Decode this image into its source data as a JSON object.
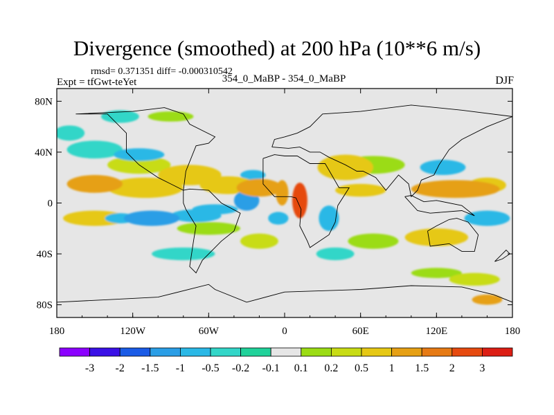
{
  "chart_data": {
    "type": "heatmap",
    "title": "Divergence (smoothed) at 200 hPa (10**6 m/s)",
    "stats": "rmsd= 0.371351 diff= -0.000310542",
    "experiment": "Expt = tfGwt-teYet",
    "case": "354_0_MaBP - 354_0_MaBP",
    "season": "DJF",
    "x_ticks": [
      "180",
      "120W",
      "60W",
      "0",
      "60E",
      "120E",
      "180"
    ],
    "x_range": [
      -180,
      180
    ],
    "y_ticks": [
      "80N",
      "40N",
      "0",
      "40S",
      "80S"
    ],
    "y_range": [
      -90,
      90
    ],
    "colorbar": {
      "colors": [
        "#8b00ff",
        "#3a10e6",
        "#1a5be6",
        "#2a9ee6",
        "#2ab8e6",
        "#32d6c8",
        "#20d29a",
        "#e6e6e6",
        "#9bdc14",
        "#c8dc14",
        "#e6c814",
        "#e6a014",
        "#e67a14",
        "#e64a0f",
        "#dc1e14"
      ],
      "labels": [
        "-3",
        "-2",
        "-1.5",
        "-1",
        "-0.5",
        "-0.2",
        "-0.1",
        "0.1",
        "0.2",
        "0.5",
        "1",
        "1.5",
        "2",
        "3"
      ]
    },
    "features": [
      {
        "lon": -150,
        "lat": 15,
        "rx": 22,
        "ry": 7,
        "value": 1.1
      },
      {
        "lon": -110,
        "lat": 12,
        "rx": 30,
        "ry": 8,
        "value": 0.7
      },
      {
        "lon": -75,
        "lat": 22,
        "rx": 25,
        "ry": 8,
        "value": 0.6
      },
      {
        "lon": -45,
        "lat": 14,
        "rx": 22,
        "ry": 7,
        "value": 0.8
      },
      {
        "lon": -20,
        "lat": 12,
        "rx": 18,
        "ry": 7,
        "value": 1.3
      },
      {
        "lon": 12,
        "lat": 2,
        "rx": 6,
        "ry": 14,
        "value": 2.6
      },
      {
        "lon": -2,
        "lat": 8,
        "rx": 5,
        "ry": 10,
        "value": 1.2
      },
      {
        "lon": 48,
        "lat": 28,
        "rx": 22,
        "ry": 10,
        "value": 0.9
      },
      {
        "lon": 60,
        "lat": 10,
        "rx": 20,
        "ry": 5,
        "value": 0.6
      },
      {
        "lon": 135,
        "lat": 11,
        "rx": 35,
        "ry": 7,
        "value": 1.3
      },
      {
        "lon": 160,
        "lat": 14,
        "rx": 15,
        "ry": 6,
        "value": 0.8
      },
      {
        "lon": -150,
        "lat": -12,
        "rx": 25,
        "ry": 6,
        "value": 0.7
      },
      {
        "lon": 120,
        "lat": -27,
        "rx": 25,
        "ry": 7,
        "value": 0.6
      },
      {
        "lon": -115,
        "lat": 30,
        "rx": 25,
        "ry": 7,
        "value": 0.3
      },
      {
        "lon": -20,
        "lat": -30,
        "rx": 15,
        "ry": 6,
        "value": 0.3
      },
      {
        "lon": 150,
        "lat": -60,
        "rx": 20,
        "ry": 5,
        "value": 0.5
      },
      {
        "lon": 160,
        "lat": -76,
        "rx": 12,
        "ry": 4,
        "value": 1.4
      },
      {
        "lon": -170,
        "lat": 55,
        "rx": 12,
        "ry": 6,
        "value": -0.3
      },
      {
        "lon": -115,
        "lat": 38,
        "rx": 20,
        "ry": 5,
        "value": -0.5
      },
      {
        "lon": -70,
        "lat": -10,
        "rx": 20,
        "ry": 5,
        "value": -0.9
      },
      {
        "lon": -105,
        "lat": -12,
        "rx": 22,
        "ry": 6,
        "value": -1.2
      },
      {
        "lon": -130,
        "lat": -12,
        "rx": 12,
        "ry": 4,
        "value": -0.8
      },
      {
        "lon": -55,
        "lat": -5,
        "rx": 18,
        "ry": 4,
        "value": -0.6
      },
      {
        "lon": -30,
        "lat": 2,
        "rx": 10,
        "ry": 8,
        "value": -1.1
      },
      {
        "lon": -5,
        "lat": -12,
        "rx": 8,
        "ry": 5,
        "value": -0.8
      },
      {
        "lon": -25,
        "lat": 22,
        "rx": 10,
        "ry": 4,
        "value": -0.6
      },
      {
        "lon": 35,
        "lat": -12,
        "rx": 8,
        "ry": 10,
        "value": -0.7
      },
      {
        "lon": 125,
        "lat": 28,
        "rx": 18,
        "ry": 6,
        "value": -0.6
      },
      {
        "lon": 160,
        "lat": -12,
        "rx": 18,
        "ry": 6,
        "value": -0.5
      },
      {
        "lon": -150,
        "lat": 42,
        "rx": 22,
        "ry": 7,
        "value": -0.3
      },
      {
        "lon": -130,
        "lat": 68,
        "rx": 15,
        "ry": 5,
        "value": -0.3
      },
      {
        "lon": -80,
        "lat": -40,
        "rx": 25,
        "ry": 5,
        "value": -0.3
      },
      {
        "lon": 40,
        "lat": -40,
        "rx": 15,
        "ry": 5,
        "value": -0.3
      },
      {
        "lon": 70,
        "lat": 30,
        "rx": 25,
        "ry": 7,
        "value": 0.2
      },
      {
        "lon": -60,
        "lat": -20,
        "rx": 25,
        "ry": 5,
        "value": 0.2
      },
      {
        "lon": 70,
        "lat": -30,
        "rx": 20,
        "ry": 6,
        "value": 0.2
      },
      {
        "lon": 120,
        "lat": -55,
        "rx": 20,
        "ry": 4,
        "value": 0.2
      },
      {
        "lon": -90,
        "lat": 68,
        "rx": 18,
        "ry": 4,
        "value": 0.15
      }
    ],
    "coastlines": [
      [
        [
          -165,
          70
        ],
        [
          -140,
          70
        ],
        [
          -125,
          55
        ],
        [
          -125,
          40
        ],
        [
          -115,
          30
        ],
        [
          -100,
          20
        ],
        [
          -90,
          15
        ],
        [
          -80,
          10
        ],
        [
          -78,
          25
        ],
        [
          -70,
          45
        ],
        [
          -60,
          47
        ],
        [
          -55,
          52
        ],
        [
          -75,
          62
        ],
        [
          -80,
          70
        ],
        [
          -95,
          75
        ],
        [
          -120,
          72
        ],
        [
          -165,
          70
        ]
      ],
      [
        [
          -80,
          10
        ],
        [
          -75,
          11
        ],
        [
          -60,
          10
        ],
        [
          -50,
          0
        ],
        [
          -35,
          -8
        ],
        [
          -40,
          -22
        ],
        [
          -50,
          -30
        ],
        [
          -58,
          -38
        ],
        [
          -65,
          -45
        ],
        [
          -70,
          -55
        ],
        [
          -75,
          -50
        ],
        [
          -72,
          -30
        ],
        [
          -70,
          -18
        ],
        [
          -78,
          -5
        ],
        [
          -80,
          0
        ],
        [
          -80,
          10
        ]
      ],
      [
        [
          -17,
          35
        ],
        [
          -8,
          38
        ],
        [
          0,
          37
        ],
        [
          10,
          37
        ],
        [
          20,
          31
        ],
        [
          32,
          31
        ],
        [
          43,
          12
        ],
        [
          51,
          12
        ],
        [
          42,
          -2
        ],
        [
          40,
          -15
        ],
        [
          35,
          -25
        ],
        [
          20,
          -35
        ],
        [
          18,
          -30
        ],
        [
          12,
          -18
        ],
        [
          13,
          -5
        ],
        [
          9,
          4
        ],
        [
          5,
          5
        ],
        [
          -8,
          5
        ],
        [
          -17,
          15
        ],
        [
          -17,
          35
        ]
      ],
      [
        [
          -10,
          44
        ],
        [
          -8,
          50
        ],
        [
          0,
          52
        ],
        [
          10,
          55
        ],
        [
          20,
          60
        ],
        [
          30,
          70
        ],
        [
          60,
          72
        ],
        [
          100,
          77
        ],
        [
          140,
          73
        ],
        [
          180,
          68
        ],
        [
          160,
          60
        ],
        [
          140,
          50
        ],
        [
          130,
          42
        ],
        [
          122,
          30
        ],
        [
          118,
          22
        ],
        [
          108,
          18
        ],
        [
          105,
          10
        ],
        [
          100,
          5
        ],
        [
          98,
          15
        ],
        [
          90,
          22
        ],
        [
          80,
          10
        ],
        [
          72,
          20
        ],
        [
          62,
          25
        ],
        [
          57,
          25
        ],
        [
          48,
          30
        ],
        [
          35,
          36
        ],
        [
          28,
          40
        ],
        [
          20,
          40
        ],
        [
          12,
          44
        ],
        [
          3,
          43
        ],
        [
          -10,
          44
        ]
      ],
      [
        [
          113,
          -22
        ],
        [
          115,
          -34
        ],
        [
          130,
          -32
        ],
        [
          140,
          -38
        ],
        [
          150,
          -38
        ],
        [
          153,
          -25
        ],
        [
          145,
          -15
        ],
        [
          136,
          -12
        ],
        [
          130,
          -13
        ],
        [
          120,
          -18
        ],
        [
          113,
          -22
        ]
      ],
      [
        [
          -180,
          -78
        ],
        [
          -140,
          -76
        ],
        [
          -100,
          -74
        ],
        [
          -60,
          -64
        ],
        [
          -55,
          -68
        ],
        [
          -30,
          -78
        ],
        [
          0,
          -70
        ],
        [
          60,
          -68
        ],
        [
          100,
          -65
        ],
        [
          140,
          -66
        ],
        [
          165,
          -72
        ],
        [
          180,
          -78
        ]
      ],
      [
        [
          166,
          -46
        ],
        [
          172,
          -40
        ],
        [
          175,
          -37
        ],
        [
          178,
          -40
        ],
        [
          172,
          -44
        ],
        [
          166,
          -46
        ]
      ],
      [
        [
          95,
          5
        ],
        [
          105,
          -6
        ],
        [
          115,
          -8
        ],
        [
          140,
          -6
        ],
        [
          150,
          -10
        ],
        [
          140,
          -2
        ],
        [
          120,
          2
        ],
        [
          110,
          1
        ],
        [
          100,
          6
        ],
        [
          95,
          5
        ]
      ]
    ]
  }
}
